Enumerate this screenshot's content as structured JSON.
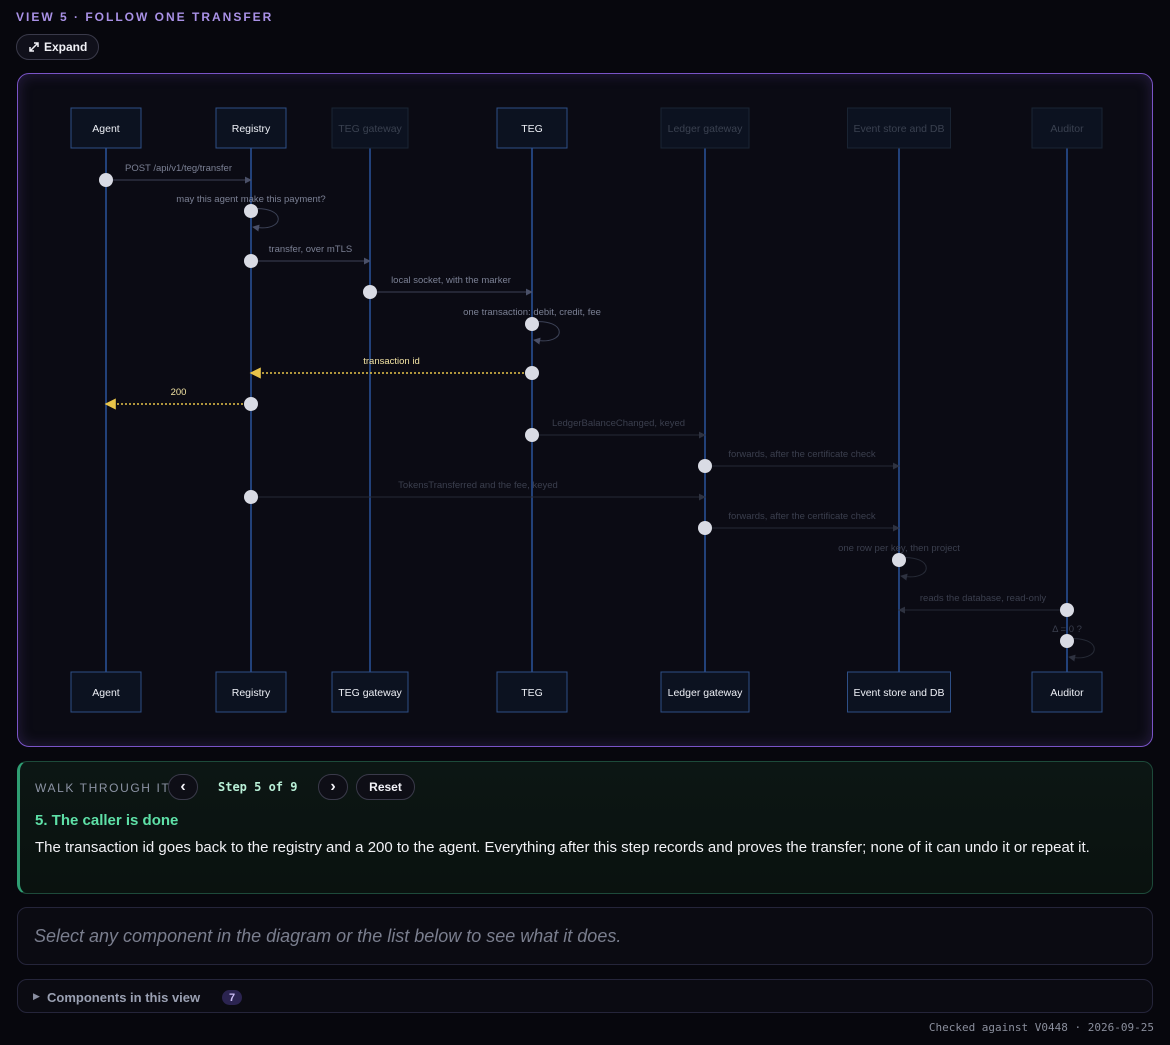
{
  "header": {
    "view_title": "VIEW 5 · FOLLOW ONE TRANSFER",
    "expand_label": "Expand",
    "expand_icon": "expand-arrows-icon"
  },
  "diagram": {
    "participants": [
      {
        "id": "agent",
        "label": "Agent",
        "active": true
      },
      {
        "id": "registry",
        "label": "Registry",
        "active": true
      },
      {
        "id": "teg_gateway",
        "label": "TEG gateway",
        "active": false
      },
      {
        "id": "teg",
        "label": "TEG",
        "active": true
      },
      {
        "id": "ledger_gateway",
        "label": "Ledger gateway",
        "active": false
      },
      {
        "id": "event_store",
        "label": "Event store and DB",
        "active": false
      },
      {
        "id": "auditor",
        "label": "Auditor",
        "active": false
      }
    ],
    "messages": [
      {
        "from": "agent",
        "to": "registry",
        "label": "POST /api/v1/teg/transfer",
        "state": "past"
      },
      {
        "from": "registry",
        "to": "registry",
        "label": "may this agent make this payment?",
        "state": "past"
      },
      {
        "from": "registry",
        "to": "teg_gateway",
        "label": "transfer, over mTLS",
        "state": "past"
      },
      {
        "from": "teg_gateway",
        "to": "teg",
        "label": "local socket, with the marker",
        "state": "past"
      },
      {
        "from": "teg",
        "to": "teg",
        "label": "one transaction: debit, credit, fee",
        "state": "past"
      },
      {
        "from": "teg",
        "to": "registry",
        "label": "transaction id",
        "state": "current"
      },
      {
        "from": "registry",
        "to": "agent",
        "label": "200",
        "state": "current"
      },
      {
        "from": "teg",
        "to": "ledger_gateway",
        "label": "LedgerBalanceChanged, keyed",
        "state": "future"
      },
      {
        "from": "ledger_gateway",
        "to": "event_store",
        "label": "forwards, after the certificate check",
        "state": "future"
      },
      {
        "from": "registry",
        "to": "ledger_gateway",
        "label": "TokensTransferred and the fee, keyed",
        "state": "future"
      },
      {
        "from": "ledger_gateway",
        "to": "event_store",
        "label": "forwards, after the certificate check",
        "state": "future"
      },
      {
        "from": "event_store",
        "to": "event_store",
        "label": "one row per key, then project",
        "state": "future"
      },
      {
        "from": "auditor",
        "to": "event_store",
        "label": "reads the database, read-only",
        "state": "future"
      },
      {
        "from": "auditor",
        "to": "auditor",
        "label": "Δ = 0 ?",
        "state": "future"
      }
    ],
    "colors": {
      "lifeline": "#2f5fb0",
      "box_border_active": "#2e4f86",
      "box_border_dim": "#1a2433",
      "current_arrow": "#e8c44a",
      "current_label": "#f2e3a3",
      "past_label": "#7b8094",
      "future_label": "#3b3f4e",
      "dot": "#d9dbe4"
    }
  },
  "walkthrough": {
    "label": "WALK THROUGH IT",
    "prev_icon": "chevron-left-icon",
    "prev_glyph": "‹",
    "next_icon": "chevron-right-icon",
    "next_glyph": "›",
    "step_text": "Step 5 of 9",
    "reset_label": "Reset",
    "step_title": "5. The caller is done",
    "step_body": "The transaction id goes back to the registry and a 200 to the agent. Everything after this step records and proves the transfer; none of it can undo it or repeat it."
  },
  "hint": {
    "text": "Select any component in the diagram or the list below to see what it does."
  },
  "components": {
    "label": "Components in this view",
    "count": "7",
    "toggle_icon": "disclosure-triangle-icon"
  },
  "footer": {
    "text": "Checked against V0448 · 2026-09-25"
  }
}
